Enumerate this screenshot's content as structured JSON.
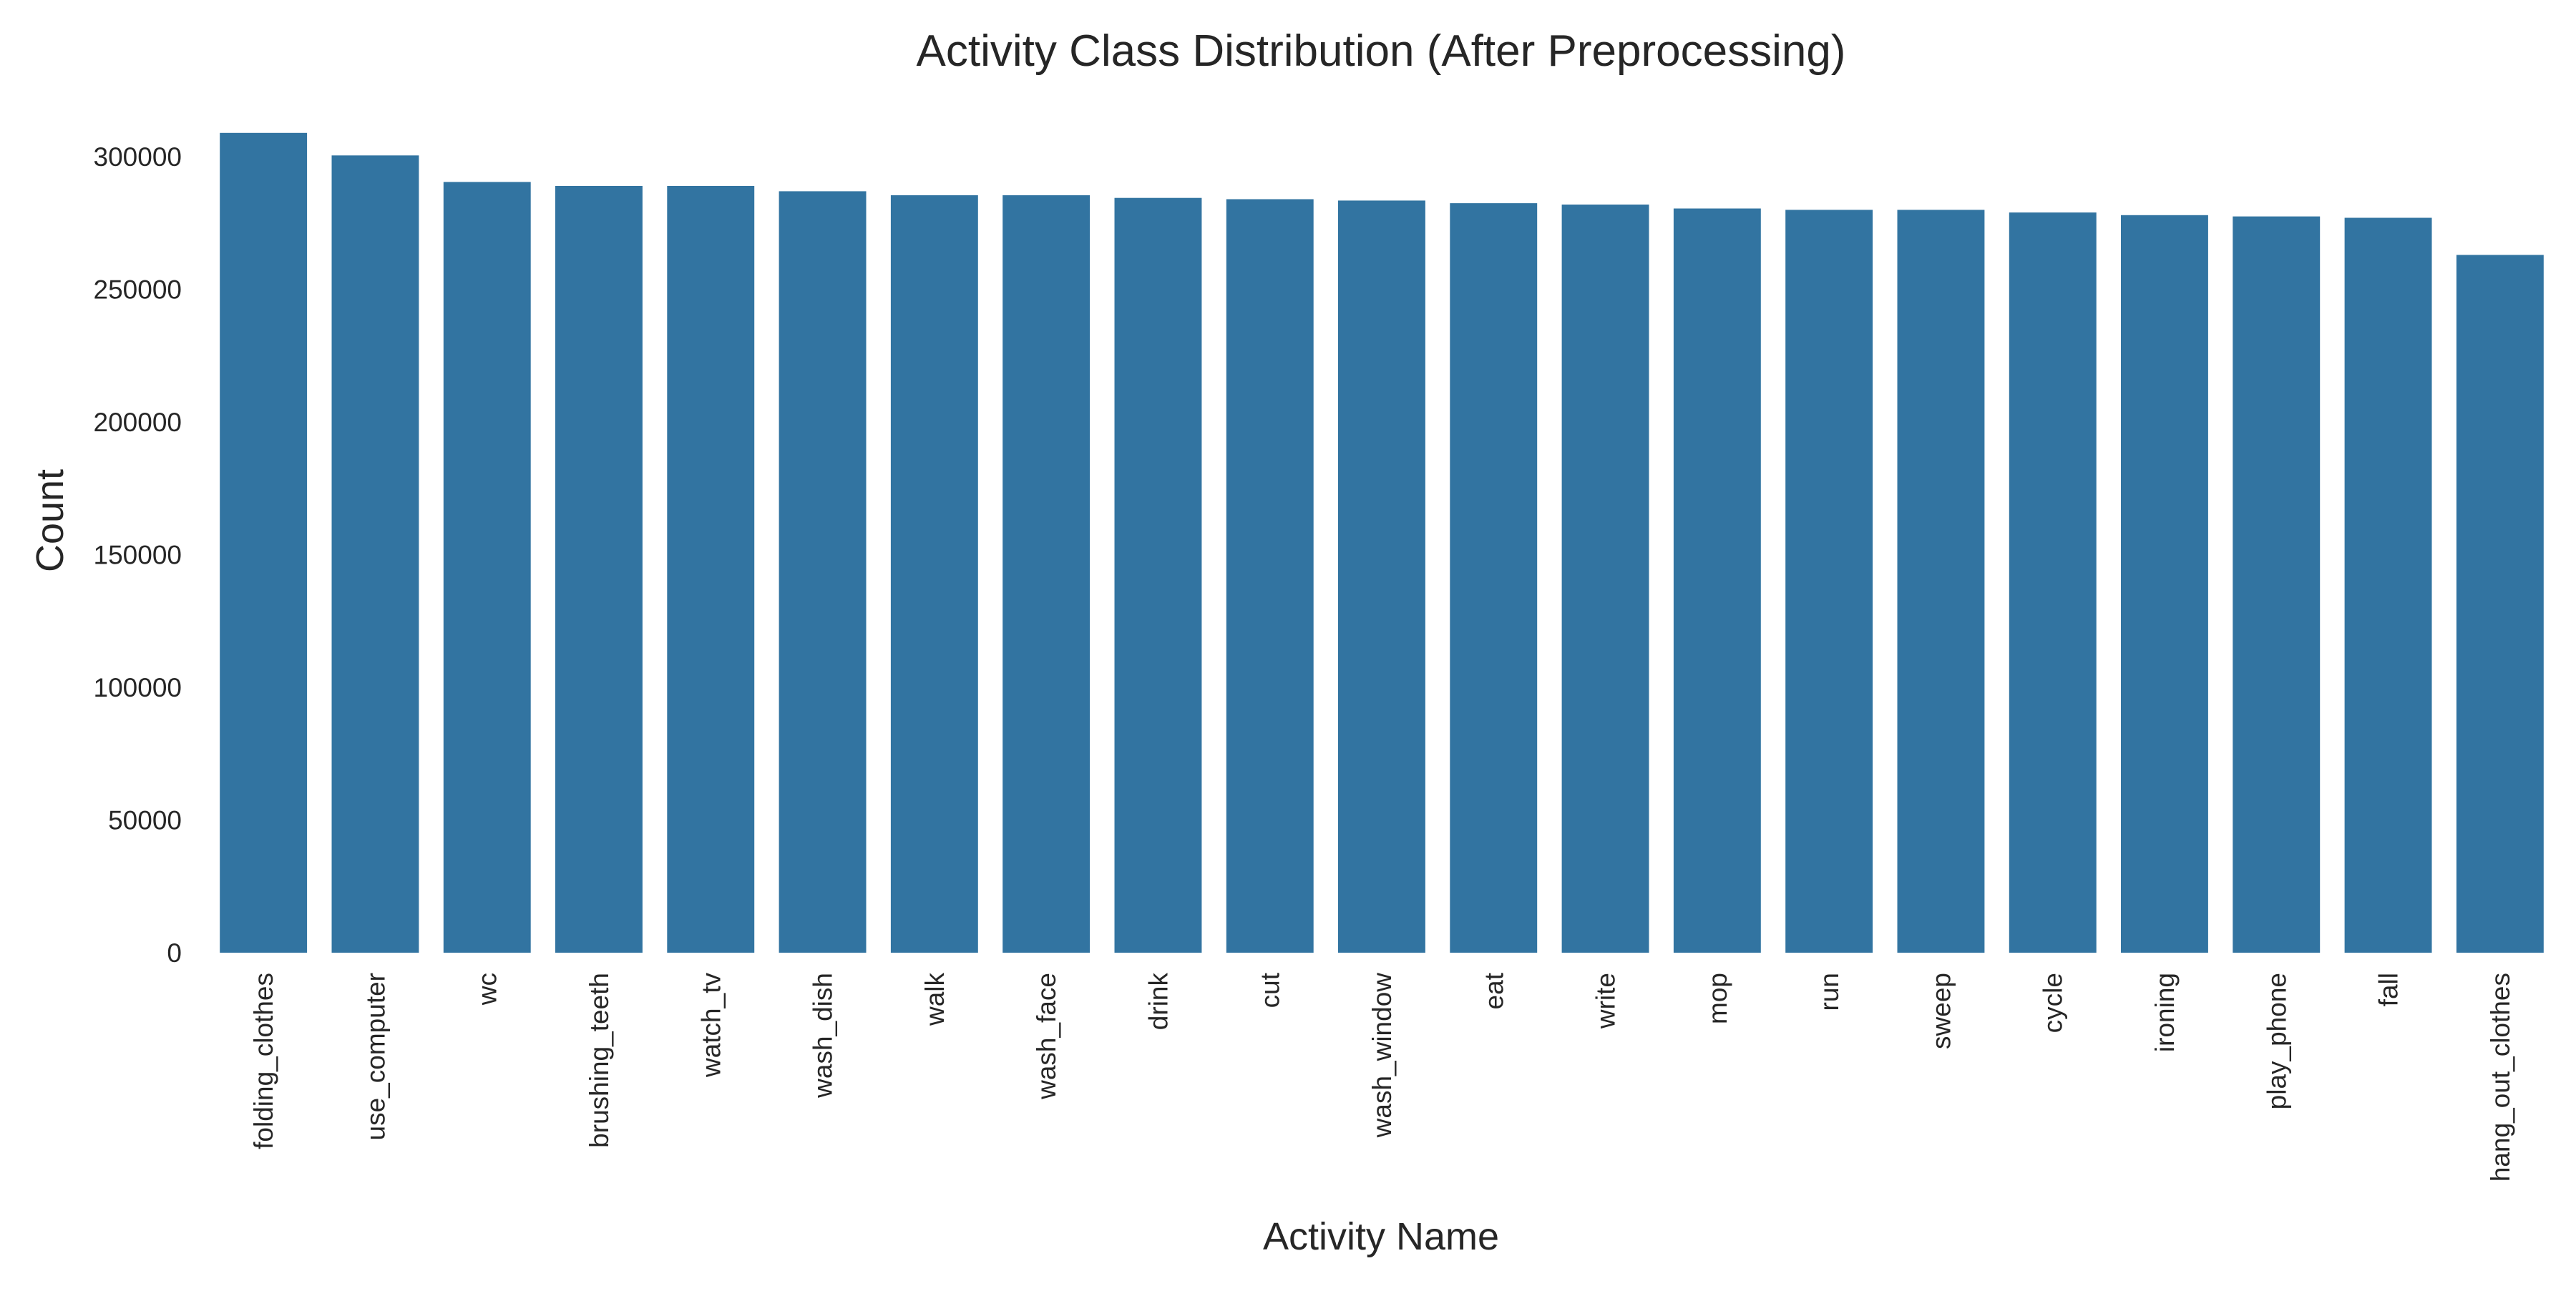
{
  "chart_data": {
    "type": "bar",
    "title": "Activity Class Distribution (After Preprocessing)",
    "xlabel": "Activity Name",
    "ylabel": "Count",
    "ylim": [
      0,
      320000
    ],
    "yticks": [
      0,
      50000,
      100000,
      150000,
      200000,
      250000,
      300000
    ],
    "ytick_labels": [
      "0",
      "50000",
      "100000",
      "150000",
      "200000",
      "250000",
      "300000"
    ],
    "grid": false,
    "bar_color": "#3274a1",
    "categories": [
      "folding_clothes",
      "use_computer",
      "wc",
      "brushing_teeth",
      "watch_tv",
      "wash_dish",
      "walk",
      "wash_face",
      "drink",
      "cut",
      "wash_window",
      "eat",
      "write",
      "mop",
      "run",
      "sweep",
      "cycle",
      "ironing",
      "play_phone",
      "fall",
      "hang_out_clothes"
    ],
    "values": [
      309000,
      300500,
      290500,
      289000,
      289000,
      287000,
      285500,
      285500,
      284500,
      284000,
      283500,
      282500,
      282000,
      280500,
      280000,
      280000,
      279000,
      278000,
      277500,
      277000,
      263000
    ]
  }
}
